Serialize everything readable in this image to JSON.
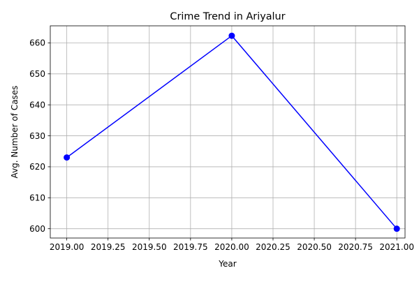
{
  "chart_data": {
    "type": "line",
    "title": "Crime Trend in Ariyalur",
    "xlabel": "Year",
    "ylabel": "Avg. Number of Cases",
    "x": [
      2019,
      2020,
      2021
    ],
    "series": [
      {
        "values": [
          623,
          662.3,
          600
        ]
      }
    ],
    "xlim": [
      2018.9,
      2021.05
    ],
    "ylim": [
      597,
      665.5
    ],
    "x_ticks": [
      "2019.00",
      "2019.25",
      "2019.50",
      "2019.75",
      "2020.00",
      "2020.25",
      "2020.50",
      "2020.75",
      "2021.00"
    ],
    "y_ticks": [
      "600",
      "610",
      "620",
      "630",
      "640",
      "650",
      "660"
    ],
    "grid": true,
    "legend": false,
    "marker": "circle",
    "line_color": "#0000ff",
    "marker_color": "#0000ff"
  }
}
